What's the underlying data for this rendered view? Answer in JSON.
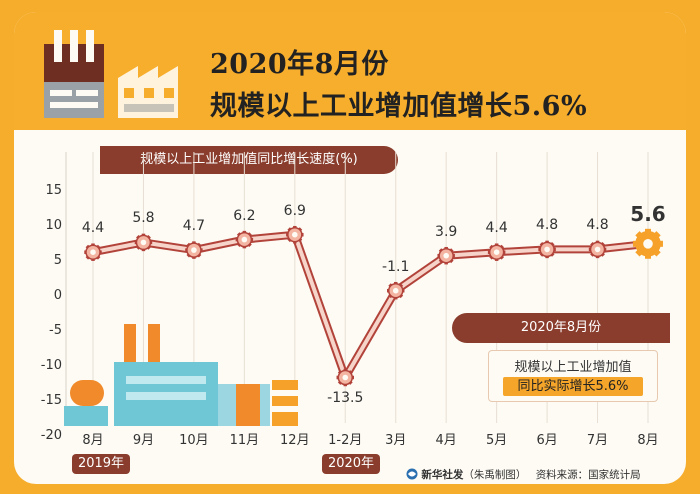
{
  "header": {
    "title_line1": "2020年8月份",
    "title_line2": "规模以上工业增加值增长5.6%"
  },
  "chart_data": {
    "type": "line",
    "title": "规模以上工业增加值同比增长速度(%)",
    "categories": [
      "8月",
      "9月",
      "10月",
      "11月",
      "12月",
      "1-2月",
      "3月",
      "4月",
      "5月",
      "6月",
      "7月",
      "8月"
    ],
    "series": [
      {
        "values": [
          4.4,
          5.8,
          4.7,
          6.2,
          6.9,
          -13.5,
          -1.1,
          3.9,
          4.4,
          4.8,
          4.8,
          5.6
        ]
      }
    ],
    "value_labels": [
      "4.4",
      "5.8",
      "4.7",
      "6.2",
      "6.9",
      "-13.5",
      "-1.1",
      "3.9",
      "4.4",
      "4.8",
      "4.8",
      "5.6"
    ],
    "yticks": [
      "15",
      "10",
      "5",
      "0",
      "-5",
      "-10",
      "-15",
      "-20"
    ],
    "ylim": [
      -20,
      15
    ],
    "grid": "vertical",
    "year_labels": [
      "2019年",
      "2020年"
    ],
    "colors": {
      "line": "#b2433a",
      "line_fill": "#f6d4c9",
      "marker": "#f3b4a2",
      "highlight": "#f5a12a",
      "accent": "#8a3d2c"
    }
  },
  "annotation": {
    "banner": "2020年8月份",
    "line1": "规模以上工业增加值",
    "line2": "同比实际增长5.6%"
  },
  "footer": {
    "agency": "新华社发",
    "designer": "（朱禹制图）",
    "source": "资料来源：国家统计局"
  },
  "icons": [
    "factory-chimney-icon",
    "factory-building-icon",
    "xinhua-logo-icon"
  ]
}
